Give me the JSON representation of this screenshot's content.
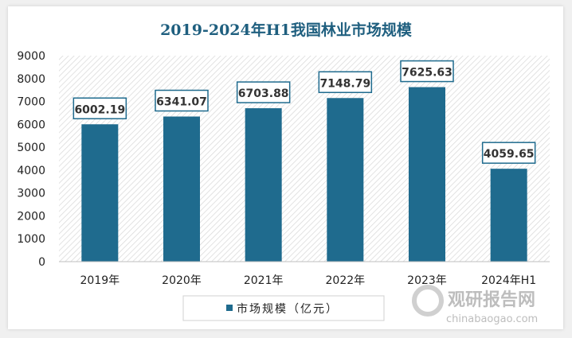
{
  "chart_data": {
    "type": "bar",
    "title": "2019-2024年H1我国林业市场规模",
    "categories": [
      "2019年",
      "2020年",
      "2021年",
      "2022年",
      "2023年",
      "2024年H1"
    ],
    "series": [
      {
        "name": "市场规模（亿元）",
        "values": [
          6002.19,
          6341.07,
          6703.88,
          7148.79,
          7625.63,
          4059.65
        ]
      }
    ],
    "value_labels": [
      "6002.19",
      "6341.07",
      "6703.88",
      "7148.79",
      "7625.63",
      "4059.65"
    ],
    "yticks": [
      "0",
      "1000",
      "2000",
      "3000",
      "4000",
      "5000",
      "6000",
      "7000",
      "8000",
      "9000"
    ],
    "ylim": [
      0,
      9000
    ],
    "grid": false,
    "legend_position": "bottom",
    "colors": {
      "bar": "#1f6b8e",
      "title": "#1f5f7f"
    }
  },
  "watermark": {
    "cn": "观研报告网",
    "en": "chinabaogao.com"
  }
}
